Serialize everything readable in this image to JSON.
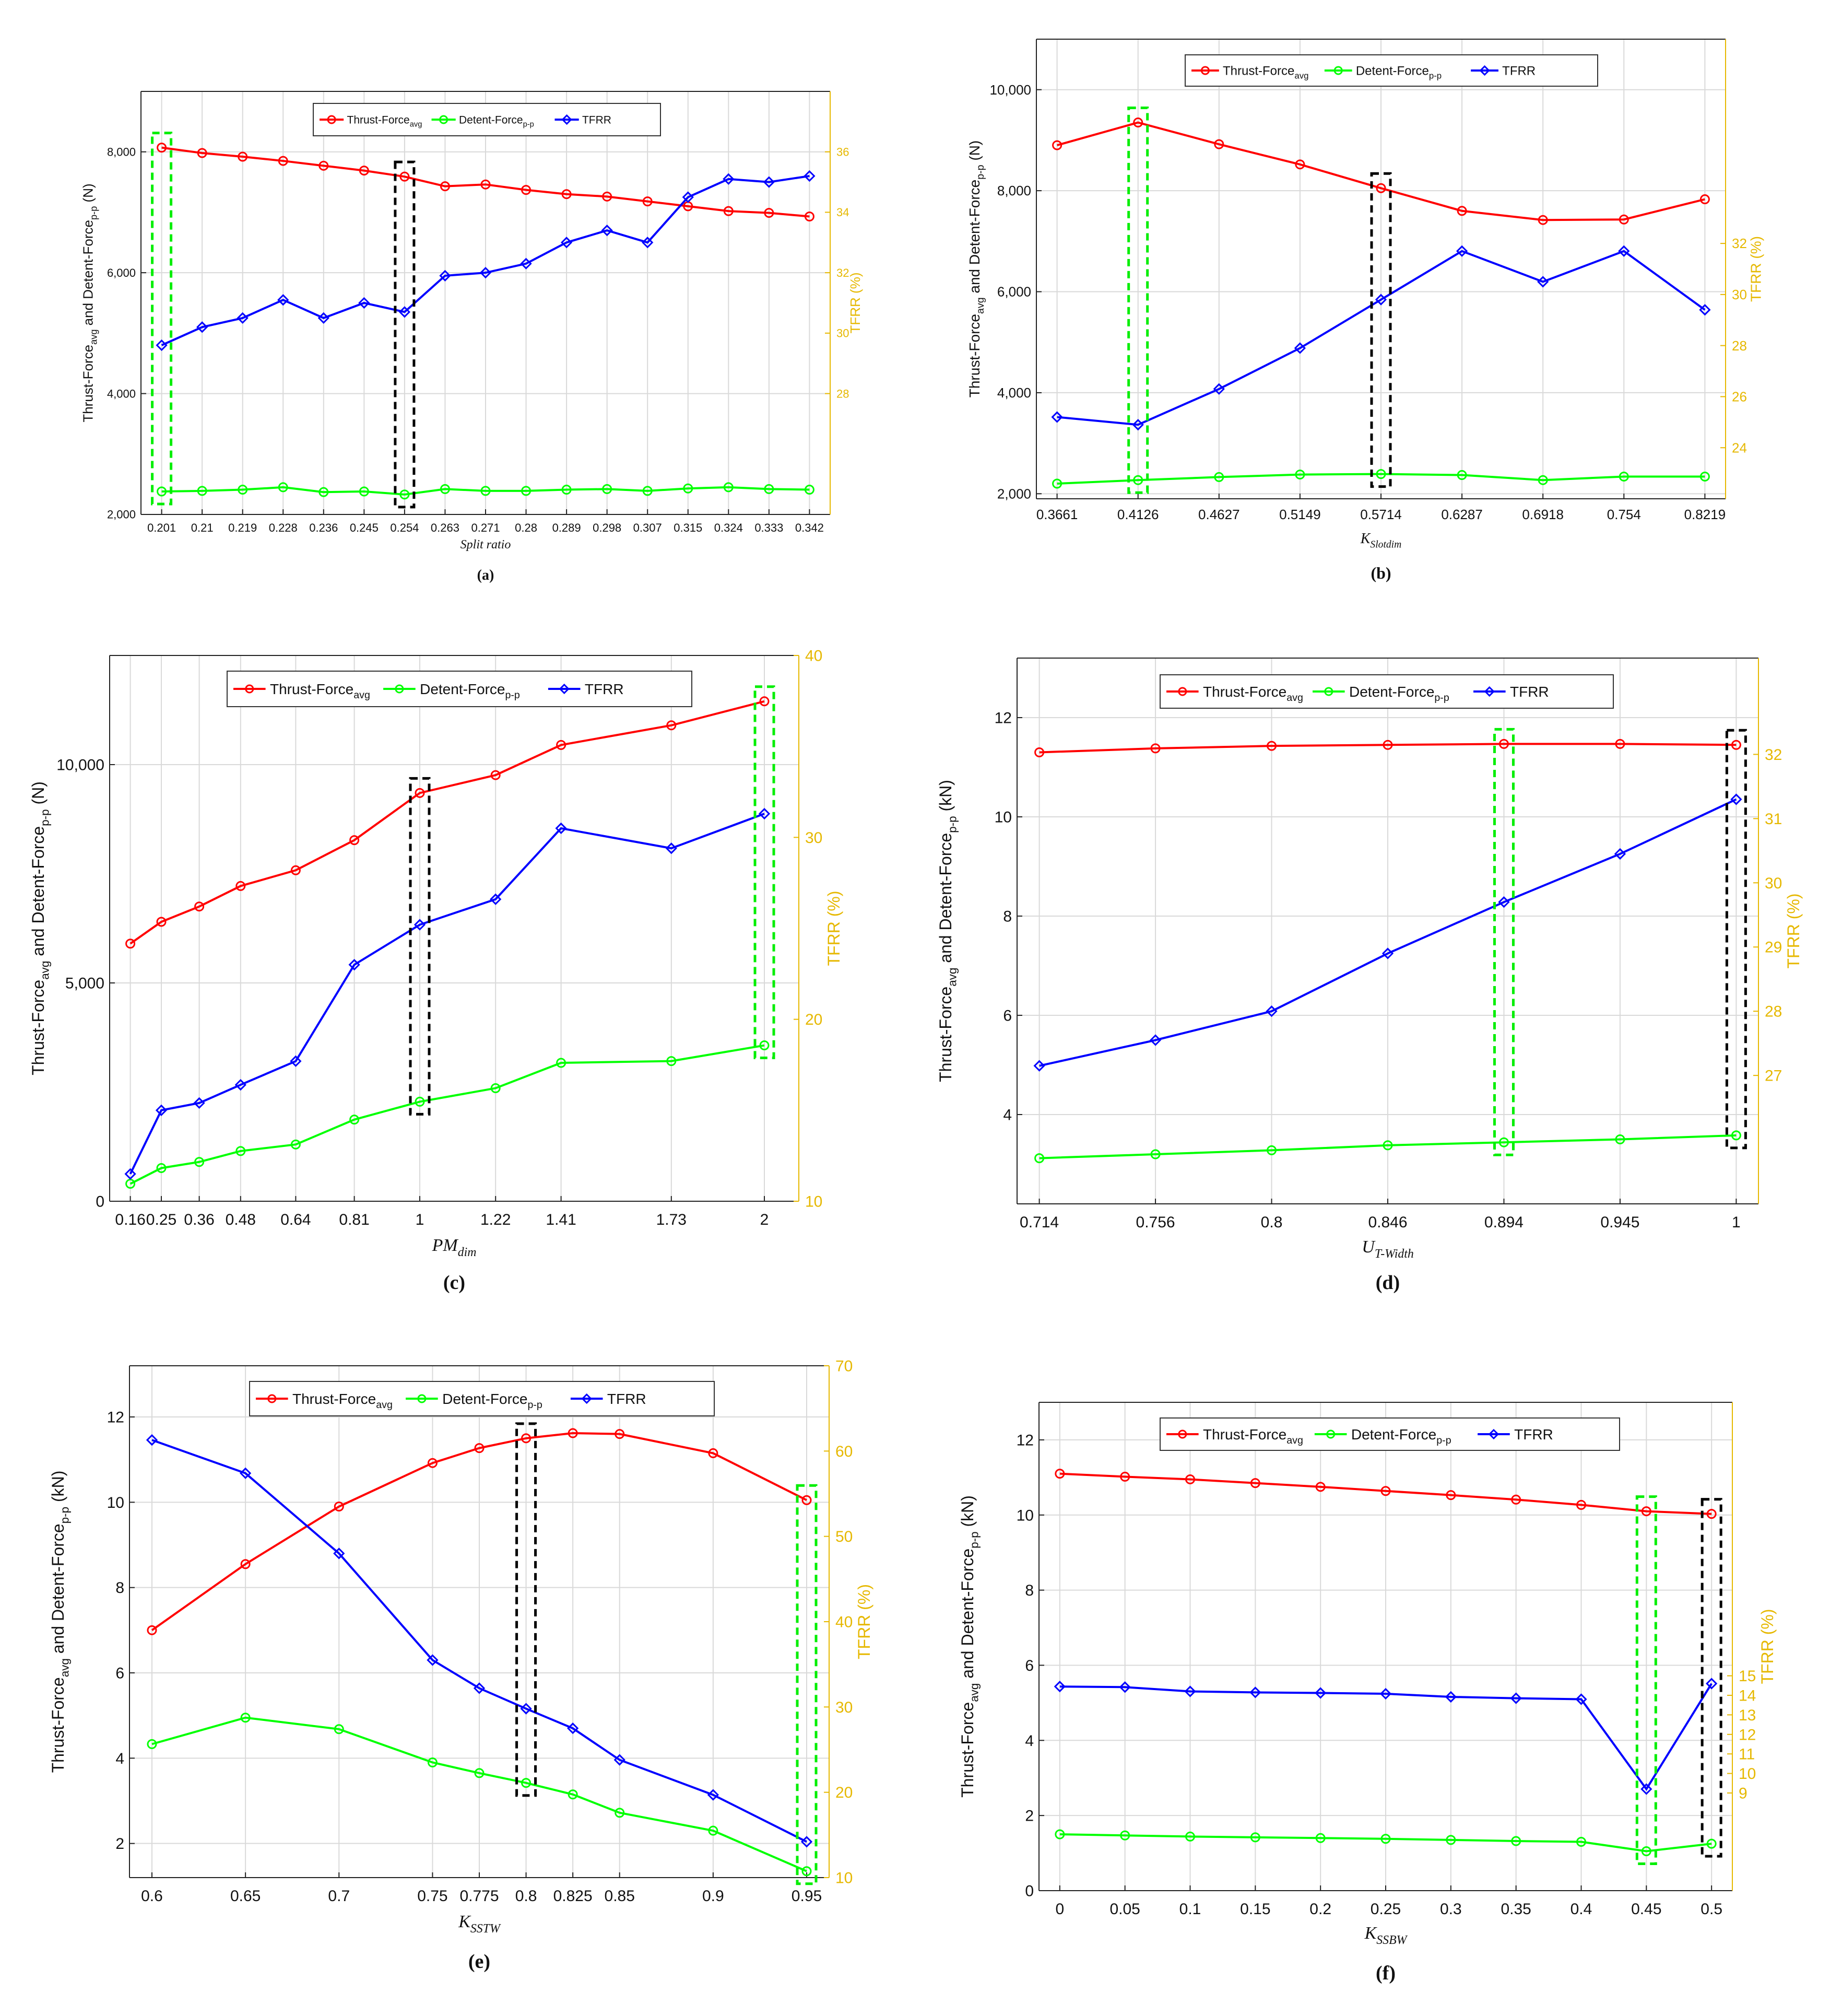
{
  "colors": {
    "thrust": "#ff0000",
    "detent": "#00ff00",
    "tfrr": "#0000ff",
    "right_axis": "#e6b800",
    "box_black": "#000000",
    "box_green": "#00ee00",
    "grid": "#d9d9d9"
  },
  "chart_data": [
    {
      "panel": "(a)",
      "type": "line",
      "xlabel": "Split ratio",
      "ylabel_main": "Thrust-Force",
      "ylabel_sub1": "avg",
      "ylabel_mid": " and Detent-Force",
      "ylabel_sub2": "p-p",
      "ylabel_unit": " (N)",
      "y2label": "TFRR (%)",
      "ylim": [
        2000,
        9000
      ],
      "y_ticks": [
        "2,000",
        "4,000",
        "6,000",
        "8,000"
      ],
      "y2lim": [
        24,
        38
      ],
      "y2_ticks": [
        "28",
        "30",
        "32",
        "34",
        "36"
      ],
      "x": [
        "0.201",
        "0.21",
        "0.219",
        "0.228",
        "0.236",
        "0.245",
        "0.254",
        "0.263",
        "0.271",
        "0.28",
        "0.289",
        "0.298",
        "0.307",
        "0.315",
        "0.324",
        "0.333",
        "0.342"
      ],
      "legend": [
        "Thrust-Force",
        "avg",
        "Detent-Force",
        "p-p",
        "TFRR"
      ],
      "series": [
        {
          "name": "Thrust-Force avg",
          "axis": "left",
          "values": [
            8070,
            7980,
            7920,
            7850,
            7770,
            7690,
            7590,
            7430,
            7460,
            7370,
            7300,
            7260,
            7180,
            7100,
            7020,
            6990,
            6930
          ]
        },
        {
          "name": "Detent-Force p-p",
          "axis": "left",
          "values": [
            2380,
            2390,
            2410,
            2450,
            2370,
            2380,
            2330,
            2420,
            2390,
            2390,
            2410,
            2420,
            2390,
            2430,
            2450,
            2420,
            2410
          ]
        },
        {
          "name": "TFRR",
          "axis": "right",
          "values": [
            29.6,
            30.2,
            30.5,
            31.1,
            30.5,
            31.0,
            30.7,
            31.9,
            32.0,
            32.3,
            33.0,
            33.4,
            33.0,
            34.5,
            35.1,
            35.0,
            35.2
          ]
        }
      ],
      "boxes": [
        {
          "index": 0,
          "color": "green"
        },
        {
          "index": 6,
          "color": "black"
        }
      ]
    },
    {
      "panel": "(b)",
      "type": "line",
      "xlabel": "K",
      "xlabel_sub": "Slotdim",
      "ylabel_main": "Thrust-Force",
      "ylabel_sub1": "avg",
      "ylabel_mid": " and Detent-Force",
      "ylabel_sub2": "p-p",
      "ylabel_unit": " (N)",
      "y2label": "TFRR (%)",
      "ylim": [
        1900,
        11000
      ],
      "y_ticks": [
        "2,000",
        "4,000",
        "6,000",
        "8,000",
        "10,000"
      ],
      "y2lim": [
        22,
        40
      ],
      "y2_ticks": [
        "24",
        "26",
        "28",
        "30",
        "32"
      ],
      "x": [
        "0.3661",
        "0.4126",
        "0.4627",
        "0.5149",
        "0.5714",
        "0.6287",
        "0.6918",
        "0.754",
        "0.8219"
      ],
      "legend": [
        "Thrust-Force",
        "avg",
        "Detent-Force",
        "p-p",
        "TFRR"
      ],
      "series": [
        {
          "name": "Thrust-Force avg",
          "axis": "left",
          "values": [
            8900,
            9350,
            8920,
            8520,
            8050,
            7600,
            7420,
            7430,
            7830
          ]
        },
        {
          "name": "Detent-Force p-p",
          "axis": "left",
          "values": [
            2200,
            2270,
            2330,
            2380,
            2390,
            2370,
            2270,
            2340,
            2340
          ]
        },
        {
          "name": "TFRR",
          "axis": "right",
          "values": [
            25.2,
            24.9,
            26.3,
            27.9,
            29.8,
            31.7,
            30.5,
            31.7,
            29.4
          ]
        }
      ],
      "boxes": [
        {
          "index": 1,
          "color": "green"
        },
        {
          "index": 4,
          "color": "black"
        }
      ]
    },
    {
      "panel": "(c)",
      "type": "line",
      "xlabel": "PM",
      "xlabel_sub": "dim",
      "ylabel_main": "Thrust-Force",
      "ylabel_sub1": "avg",
      "ylabel_mid": " and Detent-Force",
      "ylabel_sub2": "p-p",
      "ylabel_unit": " (N)",
      "y2label": "TFRR (%)",
      "ylim": [
        0,
        12500
      ],
      "y_ticks": [
        "0",
        "5,000",
        "10,000"
      ],
      "y2lim": [
        10,
        40
      ],
      "y2_ticks": [
        "10",
        "20",
        "30",
        "40"
      ],
      "x": [
        "0.16",
        "0.25",
        "0.36",
        "0.48",
        "0.64",
        "0.81",
        "1",
        "1.22",
        "1.41",
        "1.73",
        "2"
      ],
      "x_numeric": [
        0.16,
        0.25,
        0.36,
        0.48,
        0.64,
        0.81,
        1,
        1.22,
        1.41,
        1.73,
        2
      ],
      "xlim": [
        0.1,
        2.1
      ],
      "legend": [
        "Thrust-Force",
        "avg",
        "Detent-Force",
        "p-p",
        "TFRR"
      ],
      "series": [
        {
          "name": "Thrust-Force avg",
          "axis": "left",
          "values": [
            5900,
            6400,
            6750,
            7220,
            7580,
            8270,
            9350,
            9760,
            10450,
            10900,
            11450
          ]
        },
        {
          "name": "Detent-Force p-p",
          "axis": "left",
          "values": [
            400,
            760,
            900,
            1150,
            1300,
            1870,
            2280,
            2590,
            3170,
            3210,
            3570
          ]
        },
        {
          "name": "TFRR",
          "axis": "right",
          "values": [
            11.5,
            15.0,
            15.4,
            16.4,
            17.7,
            23.0,
            25.2,
            26.6,
            30.5,
            29.4,
            31.3
          ]
        }
      ],
      "boxes": [
        {
          "index": 6,
          "color": "black"
        },
        {
          "index": 10,
          "color": "green"
        }
      ]
    },
    {
      "panel": "(d)",
      "type": "line",
      "xlabel": "U",
      "xlabel_sub": "T-Width",
      "ylabel_main": "Thrust-Force",
      "ylabel_sub1": "avg",
      "ylabel_mid": " and Detent-Force",
      "ylabel_sub2": "p-p",
      "ylabel_unit": " (kN)",
      "y2label": "TFRR (%)",
      "ylim": [
        2.2,
        13.2
      ],
      "y_ticks": [
        "4",
        "6",
        "8",
        "10",
        "12"
      ],
      "y2lim": [
        25,
        33.5
      ],
      "y2_ticks": [
        "27",
        "28",
        "29",
        "30",
        "31",
        "32"
      ],
      "x": [
        "0.714",
        "0.756",
        "0.8",
        "0.846",
        "0.894",
        "0.945",
        "1"
      ],
      "legend": [
        "Thrust-Force",
        "avg",
        "Detent-Force",
        "p-p",
        "TFRR"
      ],
      "series": [
        {
          "name": "Thrust-Force avg",
          "axis": "left",
          "values": [
            11.3,
            11.38,
            11.43,
            11.45,
            11.47,
            11.47,
            11.45
          ]
        },
        {
          "name": "Detent-Force p-p",
          "axis": "left",
          "values": [
            3.12,
            3.2,
            3.28,
            3.38,
            3.44,
            3.5,
            3.58
          ]
        },
        {
          "name": "TFRR",
          "axis": "right",
          "values": [
            27.15,
            27.55,
            28.0,
            28.9,
            29.7,
            30.45,
            31.3
          ]
        }
      ],
      "boxes": [
        {
          "index": 4,
          "color": "green"
        },
        {
          "index": 6,
          "color": "black"
        }
      ]
    },
    {
      "panel": "(e)",
      "type": "line",
      "xlabel": "K",
      "xlabel_sub": "SSTW",
      "ylabel_main": "Thrust-Force",
      "ylabel_sub1": "avg",
      "ylabel_mid": " and Detent-Force",
      "ylabel_sub2": "p-p",
      "ylabel_unit": " (kN)",
      "y2label": "TFRR (%)",
      "ylim": [
        1.2,
        13.2
      ],
      "y_ticks": [
        "2",
        "4",
        "6",
        "8",
        "10",
        "12"
      ],
      "y2lim": [
        10,
        70
      ],
      "y2_ticks": [
        "10",
        "20",
        "30",
        "40",
        "50",
        "60",
        "70"
      ],
      "x": [
        "0.6",
        "0.65",
        "0.7",
        "0.75",
        "0.775",
        "0.8",
        "0.825",
        "0.85",
        "0.9",
        "0.95"
      ],
      "x_numeric": [
        0.6,
        0.65,
        0.7,
        0.75,
        0.775,
        0.8,
        0.825,
        0.85,
        0.9,
        0.95
      ],
      "xlim": [
        0.588,
        0.962
      ],
      "legend": [
        "Thrust-Force",
        "avg",
        "Detent-Force",
        "p-p",
        "TFRR"
      ],
      "series": [
        {
          "name": "Thrust-Force avg",
          "axis": "left",
          "values": [
            7.0,
            8.55,
            9.9,
            10.92,
            11.27,
            11.5,
            11.62,
            11.6,
            11.15,
            10.05
          ]
        },
        {
          "name": "Detent-Force p-p",
          "axis": "left",
          "values": [
            4.33,
            4.95,
            4.68,
            3.9,
            3.65,
            3.42,
            3.15,
            2.72,
            2.3,
            1.35
          ]
        },
        {
          "name": "TFRR",
          "axis": "right",
          "values": [
            61.3,
            57.4,
            48.0,
            35.5,
            32.2,
            29.8,
            27.5,
            23.8,
            19.7,
            14.2
          ]
        }
      ],
      "boxes": [
        {
          "index": 5,
          "color": "black"
        },
        {
          "index": 9,
          "color": "green"
        }
      ]
    },
    {
      "panel": "(f)",
      "type": "line",
      "xlabel": "K",
      "xlabel_sub": "SSBW",
      "ylabel_main": "Thrust-Force",
      "ylabel_sub1": "avg",
      "ylabel_mid": " and Detent-Force",
      "ylabel_sub2": "p-p",
      "ylabel_unit": " (kN)",
      "y2label": "TFRR (%)",
      "ylim": [
        0,
        13
      ],
      "y_ticks": [
        "0",
        "2",
        "4",
        "6",
        "8",
        "10",
        "12"
      ],
      "y2lim": [
        4,
        29
      ],
      "y2_ticks": [
        "9",
        "10",
        "11",
        "12",
        "13",
        "14",
        "15"
      ],
      "x": [
        "0",
        "0.05",
        "0.1",
        "0.15",
        "0.2",
        "0.25",
        "0.3",
        "0.35",
        "0.4",
        "0.45",
        "0.5"
      ],
      "legend": [
        "Thrust-Force",
        "avg",
        "Detent-Force",
        "p-p",
        "TFRR"
      ],
      "series": [
        {
          "name": "Thrust-Force avg",
          "axis": "left",
          "values": [
            11.1,
            11.02,
            10.95,
            10.85,
            10.75,
            10.64,
            10.53,
            10.41,
            10.27,
            10.1,
            10.03
          ]
        },
        {
          "name": "Detent-Force p-p",
          "axis": "left",
          "values": [
            1.5,
            1.47,
            1.44,
            1.42,
            1.4,
            1.38,
            1.35,
            1.32,
            1.3,
            1.05,
            1.25
          ]
        },
        {
          "name": "TFRR",
          "axis": "right",
          "values": [
            14.45,
            14.42,
            14.2,
            14.15,
            14.12,
            14.08,
            13.92,
            13.85,
            13.8,
            9.2,
            14.6
          ]
        }
      ],
      "boxes": [
        {
          "index": 9,
          "color": "green"
        },
        {
          "index": 10,
          "color": "black"
        }
      ]
    }
  ]
}
